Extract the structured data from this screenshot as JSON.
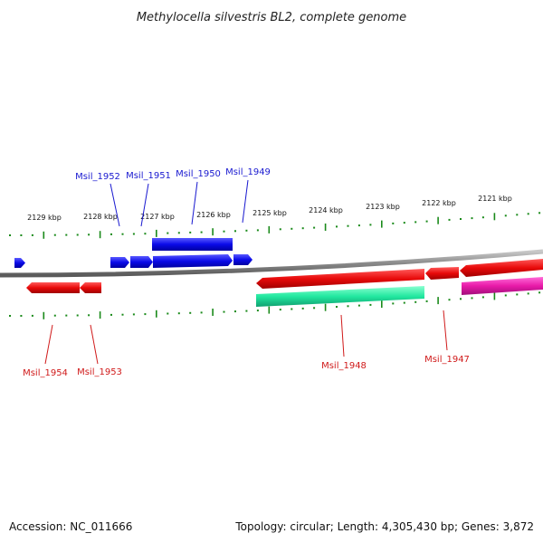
{
  "title": "Methylocella silvestris BL2, complete genome",
  "footer": {
    "accession": "Accession: NC_011666",
    "topology": "Topology: circular; Length: 4,305,430 bp; Genes: 3,872"
  },
  "ruler_labels": [
    "2129 kbp",
    "2128 kbp",
    "2127 kbp",
    "2126 kbp",
    "2125 kbp",
    "2124 kbp",
    "2123 kbp",
    "2122 kbp",
    "2121 kbp"
  ],
  "genes_forward": [
    "Msil_1952",
    "Msil_1951",
    "Msil_1950",
    "Msil_1949"
  ],
  "genes_reverse": [
    "Msil_1954",
    "Msil_1953",
    "Msil_1948",
    "Msil_1947"
  ],
  "colors": {
    "forward_gene": "#0a0ae8",
    "reverse_gene": "#e80a0a",
    "rna_feature": "#22e8a0",
    "magenta_feature": "#e81aa8",
    "tick": "#1a8a1a",
    "backbone": "#8a8a8a"
  }
}
